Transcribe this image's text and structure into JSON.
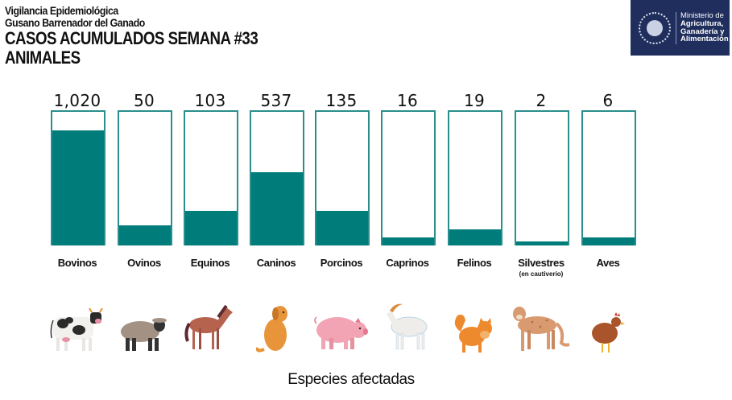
{
  "header": {
    "line1": "Vigilancia Epidemiológica",
    "line2": "Gusano Barrenador del Ganado",
    "title": "CASOS ACUMULADOS SEMANA #33",
    "subtitle": "ANIMALES"
  },
  "logo": {
    "line1": "Ministerio de",
    "line2": "Agricultura,",
    "line3": "Ganadería y",
    "line4": "Alimentación",
    "bg_color": "#1f2e5c"
  },
  "colors": {
    "fill": "#007d7b",
    "border": "#2a8f8c"
  },
  "chart_data": {
    "type": "bar",
    "title": "CASOS ACUMULADOS SEMANA #33 ANIMALES",
    "xlabel": "Especies afectadas",
    "ylabel": "",
    "categories": [
      "Bovinos",
      "Ovinos",
      "Equinos",
      "Caninos",
      "Porcinos",
      "Caprinos",
      "Felinos",
      "Silvestres",
      "Aves"
    ],
    "category_notes": [
      "",
      "",
      "",
      "",
      "",
      "",
      "",
      "(en cautiverio)",
      ""
    ],
    "values": [
      1020,
      50,
      103,
      537,
      135,
      16,
      19,
      2,
      6
    ],
    "value_labels": [
      "1,020",
      "50",
      "103",
      "537",
      "135",
      "16",
      "19",
      "2",
      "6"
    ],
    "fill_fraction": [
      0.86,
      0.15,
      0.26,
      0.55,
      0.26,
      0.06,
      0.12,
      0.03,
      0.06
    ],
    "icons": [
      "cow-icon",
      "sheep-icon",
      "horse-icon",
      "dog-icon",
      "pig-icon",
      "goat-icon",
      "cat-icon",
      "puma-icon",
      "hen-icon"
    ],
    "grid": false,
    "legend": "none"
  }
}
